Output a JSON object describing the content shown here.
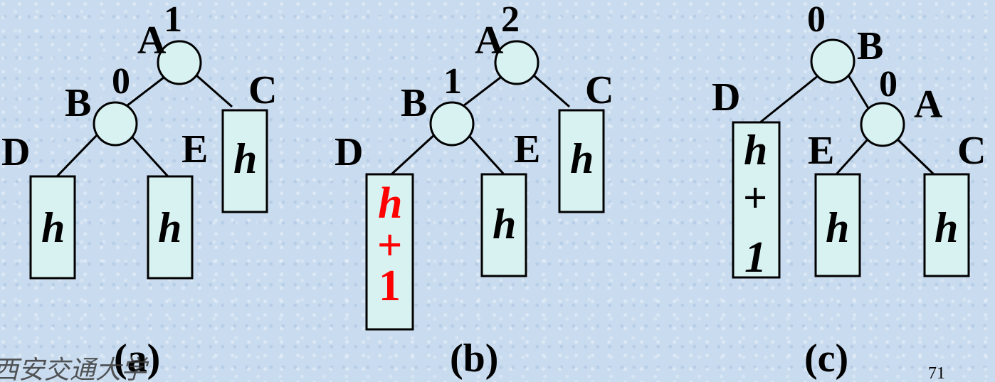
{
  "diagram_a": {
    "caption": "(a)",
    "node_A": "A",
    "node_A_balance": "1",
    "node_B": "B",
    "node_B_balance": "0",
    "subtree_C": "C",
    "subtree_C_height": "h",
    "subtree_D": "D",
    "subtree_D_height": "h",
    "subtree_E": "E",
    "subtree_E_height": "h"
  },
  "diagram_b": {
    "caption": "(b)",
    "node_A": "A",
    "node_A_balance": "2",
    "node_B": "B",
    "node_B_balance": "1",
    "subtree_C": "C",
    "subtree_C_height": "h",
    "subtree_D": "D",
    "subtree_D_height_line1": "h",
    "subtree_D_height_line2": "+",
    "subtree_D_height_line3": "1",
    "subtree_E": "E",
    "subtree_E_height": "h",
    "highlight_color": "#ff0000"
  },
  "diagram_c": {
    "caption": "(c)",
    "node_B": "B",
    "node_B_balance": "0",
    "node_A": "A",
    "node_A_balance": "0",
    "subtree_D": "D",
    "subtree_D_height_line1": "h",
    "subtree_D_height_line2": "+",
    "subtree_D_height_line3": "1",
    "subtree_E": "E",
    "subtree_E_height": "h",
    "subtree_C": "C",
    "subtree_C_height": "h"
  },
  "page_number": "71",
  "watermark": "西安交通大学"
}
